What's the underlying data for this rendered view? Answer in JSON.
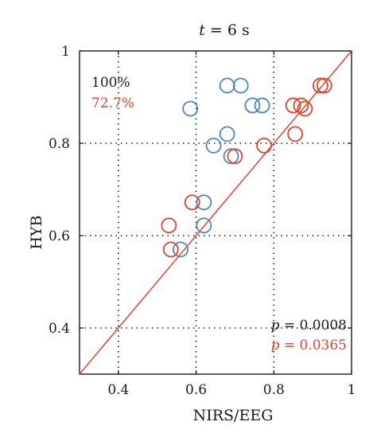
{
  "chart_data": {
    "type": "scatter",
    "title_var": "t",
    "title_rest": " = 6 s",
    "xlabel": "NIRS/EEG",
    "ylabel": "HYB",
    "xlim": [
      0.3,
      1.0
    ],
    "ylim": [
      0.3,
      1.0
    ],
    "xticks": [
      0.4,
      0.6,
      0.8,
      1.0
    ],
    "xtick_labels": [
      "0.4",
      "0.6",
      "0.8",
      "1"
    ],
    "yticks": [
      0.4,
      0.6,
      0.8,
      1.0
    ],
    "ytick_labels": [
      "0.4",
      "0.6",
      "0.8",
      "1"
    ],
    "grid": true,
    "grid_style": "dotted",
    "reference_line": {
      "x": [
        0.3,
        1.0
      ],
      "y": [
        0.3,
        1.0
      ],
      "color": "#e8412b"
    },
    "series": [
      {
        "color": "#4a86c8",
        "marker": "open-circle",
        "points": [
          {
            "x": 0.585,
            "y": 0.875
          },
          {
            "x": 0.68,
            "y": 0.925
          },
          {
            "x": 0.715,
            "y": 0.925
          },
          {
            "x": 0.745,
            "y": 0.882
          },
          {
            "x": 0.77,
            "y": 0.882
          },
          {
            "x": 0.68,
            "y": 0.82
          },
          {
            "x": 0.645,
            "y": 0.795
          },
          {
            "x": 0.69,
            "y": 0.772
          },
          {
            "x": 0.62,
            "y": 0.672
          },
          {
            "x": 0.62,
            "y": 0.622
          },
          {
            "x": 0.56,
            "y": 0.57
          }
        ]
      },
      {
        "color": "#e8412b",
        "marker": "open-circle",
        "points": [
          {
            "x": 0.59,
            "y": 0.672
          },
          {
            "x": 0.53,
            "y": 0.622
          },
          {
            "x": 0.535,
            "y": 0.57
          },
          {
            "x": 0.7,
            "y": 0.772
          },
          {
            "x": 0.775,
            "y": 0.795
          },
          {
            "x": 0.855,
            "y": 0.82
          },
          {
            "x": 0.85,
            "y": 0.882
          },
          {
            "x": 0.87,
            "y": 0.882
          },
          {
            "x": 0.88,
            "y": 0.875
          },
          {
            "x": 0.92,
            "y": 0.925
          },
          {
            "x": 0.93,
            "y": 0.925
          }
        ]
      }
    ],
    "annotations": {
      "top_left": [
        {
          "text": "100%",
          "color": "#1a1a1a"
        },
        {
          "text": "72.7%",
          "color": "#e8412b"
        }
      ],
      "bottom_right": [
        {
          "var": "p",
          "text": " = 0.0008",
          "color": "#1a1a1a"
        },
        {
          "var": "p",
          "text": " = 0.0365",
          "color": "#e8412b"
        }
      ]
    }
  }
}
